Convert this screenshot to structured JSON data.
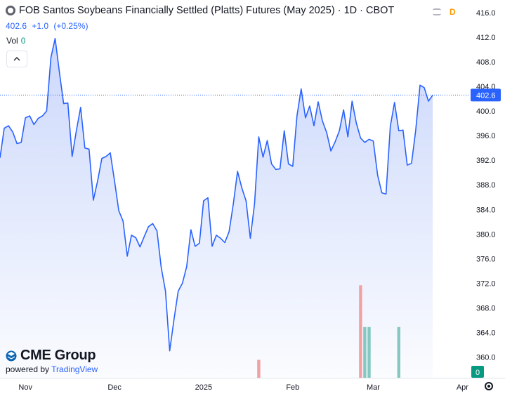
{
  "header": {
    "title": "FOB Santos Soybeans Financially Settled (Platts) Futures (May 2025) · 1D · CBOT",
    "last_price": "402.6",
    "change": "+1.0",
    "change_pct": "(+0.25%)",
    "vol_label": "Vol",
    "vol_value": "0",
    "status_letter": "D"
  },
  "branding": {
    "logo_text": "CME Group",
    "powered_by": "powered by",
    "provider": "TradingView"
  },
  "colors": {
    "line": "#2962ff",
    "area_top": "#c9d6fb",
    "vol_up": "#84c8c1",
    "vol_down": "#f1a1a4",
    "price_label_bg": "#2962ff",
    "vol_label_bg": "#089981"
  },
  "chart_data": {
    "type": "area",
    "title": "FOB Santos Soybeans Financially Settled (Platts) Futures (May 2025)",
    "ylim": [
      357.5,
      417.5
    ],
    "y_ticks": [
      360.0,
      364.0,
      368.0,
      372.0,
      376.0,
      380.0,
      384.0,
      388.0,
      392.0,
      396.0,
      400.0,
      404.0,
      408.0,
      412.0,
      416.0
    ],
    "x_ticks": [
      {
        "label": "Nov",
        "x": 6
      },
      {
        "label": "Dec",
        "x": 27
      },
      {
        "label": "2025",
        "x": 48
      },
      {
        "label": "Feb",
        "x": 69
      },
      {
        "label": "Mar",
        "x": 88
      },
      {
        "label": "Apr",
        "x": 109
      }
    ],
    "last_price_label": "402.6",
    "last_volume_label": "0",
    "series": [
      {
        "values": [
          392.4,
          397.2,
          397.6,
          396.6,
          394.7,
          394.9,
          398.9,
          399.2,
          397.8,
          398.8,
          399.2,
          400.0,
          408.7,
          411.8,
          406.3,
          401.2,
          401.3,
          392.6,
          396.8,
          400.6,
          394.0,
          393.8,
          385.5,
          388.6,
          392.3,
          392.6,
          393.2,
          388.6,
          383.8,
          382.1,
          376.4,
          379.8,
          379.4,
          377.9,
          379.6,
          381.2,
          381.7,
          380.5,
          374.6,
          370.7,
          361.0,
          366.0,
          370.7,
          372.0,
          374.7,
          380.7,
          378.0,
          378.5,
          385.4,
          385.9,
          378.0,
          379.8,
          379.3,
          378.6,
          380.4,
          384.9,
          390.2,
          387.5,
          385.4,
          379.3,
          384.9,
          395.8,
          392.5,
          395.2,
          391.4,
          390.5,
          390.6,
          396.8,
          391.4,
          391.0,
          399.2,
          403.6,
          398.9,
          400.8,
          397.6,
          401.5,
          398.4,
          396.5,
          393.5,
          395.0,
          396.8,
          400.2,
          395.8,
          401.6,
          398.0,
          395.6,
          394.9,
          395.4,
          395.1,
          389.6,
          386.7,
          386.5,
          397.5,
          401.4,
          396.8,
          396.9,
          391.2,
          391.5,
          396.9,
          404.2,
          403.8,
          401.6,
          402.6
        ],
        "volume": [
          {
            "x": 61,
            "v": 6,
            "dir": "down"
          },
          {
            "x": 85,
            "v": 31,
            "dir": "down"
          },
          {
            "x": 86,
            "v": 17,
            "dir": "up"
          },
          {
            "x": 87,
            "v": 17,
            "dir": "up"
          },
          {
            "x": 94,
            "v": 17,
            "dir": "up"
          }
        ]
      }
    ]
  }
}
